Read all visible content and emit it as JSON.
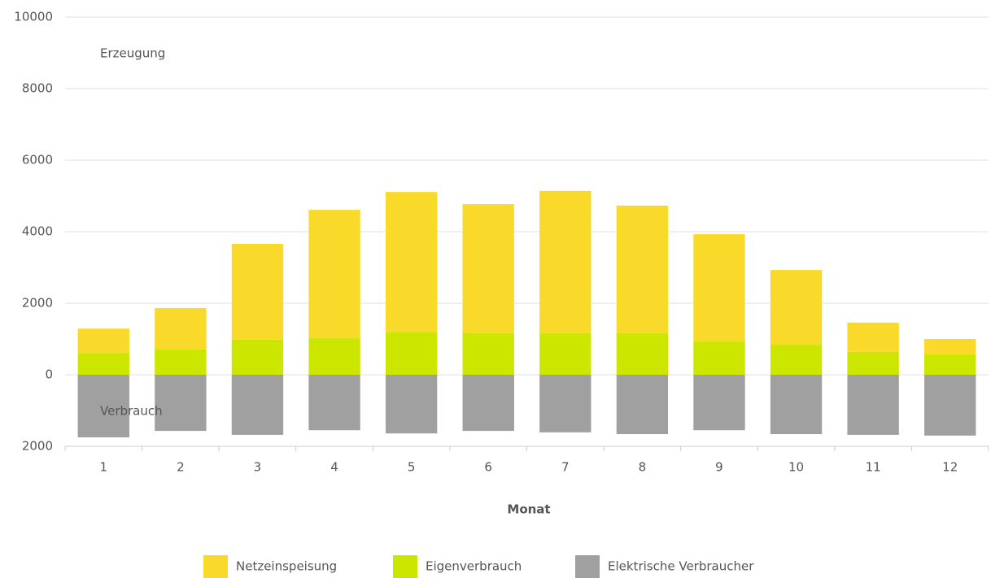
{
  "chart_data": {
    "type": "stacked_bar",
    "categories": [
      "1",
      "2",
      "3",
      "4",
      "5",
      "6",
      "7",
      "8",
      "9",
      "10",
      "11",
      "12"
    ],
    "series": [
      {
        "name": "Eigenverbrauch",
        "color": "#cde600",
        "values": [
          610,
          705,
          980,
          1020,
          1200,
          1160,
          1160,
          1160,
          930,
          840,
          640,
          570
        ]
      },
      {
        "name": "Netzeinspeisung",
        "color": "#f9d92a",
        "values": [
          680,
          1160,
          2680,
          3590,
          3910,
          3610,
          3980,
          3570,
          3000,
          2090,
          820,
          430
        ]
      },
      {
        "name": "Elektrische Verbraucher",
        "color": "#a0a0a0",
        "values": [
          -1750,
          -1570,
          -1680,
          -1550,
          -1640,
          -1570,
          -1610,
          -1660,
          -1550,
          -1660,
          -1680,
          -1700
        ]
      }
    ],
    "legend_order": [
      1,
      0,
      2
    ],
    "x_label": "Monat",
    "annotations": [
      "Erzeugung",
      "Verbrauch"
    ],
    "ylim": [
      -2000,
      10000
    ],
    "yticks": [
      {
        "value": -2000,
        "label": "2000"
      },
      0,
      2000,
      4000,
      6000,
      8000,
      10000
    ],
    "grid": true
  }
}
